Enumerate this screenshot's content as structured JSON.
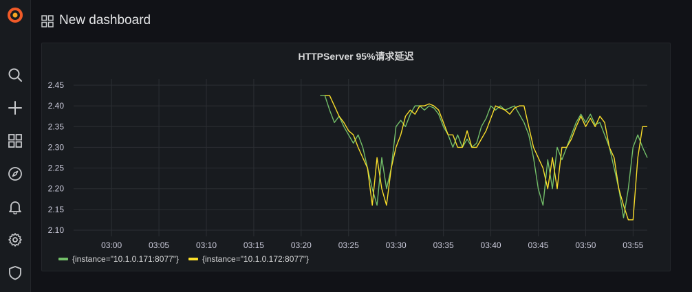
{
  "app": {
    "dashboard_title": "New dashboard",
    "sidebar": [
      {
        "icon": "grafana-logo-icon"
      },
      {
        "icon": "search-icon"
      },
      {
        "icon": "plus-icon"
      },
      {
        "icon": "dashboards-grid-icon"
      },
      {
        "icon": "compass-icon"
      },
      {
        "icon": "bell-icon"
      },
      {
        "icon": "gear-icon"
      },
      {
        "icon": "shield-icon"
      }
    ]
  },
  "colors": {
    "series_green": "#73bf69",
    "series_yellow": "#fade2a",
    "logo_orange": "#f05a28"
  },
  "panel": {
    "title": "HTTPServer 95%请求延迟"
  },
  "chart_data": {
    "type": "line",
    "title": "HTTPServer 95%请求延迟",
    "x_unit": "time (HH:MM)",
    "x_ticks": [
      "03:00",
      "03:05",
      "03:10",
      "03:15",
      "03:20",
      "03:25",
      "03:30",
      "03:35",
      "03:40",
      "03:45",
      "03:50",
      "03:55"
    ],
    "y_ticks": [
      "2.10",
      "2.15",
      "2.20",
      "2.25",
      "2.30",
      "2.35",
      "2.40",
      "2.45"
    ],
    "xlim": [
      "02:56",
      "03:56:30"
    ],
    "ylim": [
      2.1,
      2.45
    ],
    "grid": true,
    "legend_placement": "bottom-left",
    "series": [
      {
        "name": "{instance=\"10.1.0.171:8077\"}",
        "color": "#73bf69",
        "x": [
          "03:22",
          "03:22:30",
          "03:23",
          "03:23:30",
          "03:24",
          "03:24:30",
          "03:25",
          "03:25:30",
          "03:26",
          "03:26:30",
          "03:27",
          "03:27:30",
          "03:28",
          "03:28:30",
          "03:29",
          "03:29:30",
          "03:30",
          "03:30:30",
          "03:31",
          "03:31:30",
          "03:32",
          "03:32:30",
          "03:33",
          "03:33:30",
          "03:34",
          "03:34:30",
          "03:35",
          "03:35:30",
          "03:36",
          "03:36:30",
          "03:37",
          "03:37:30",
          "03:38",
          "03:38:30",
          "03:39",
          "03:39:30",
          "03:40",
          "03:40:30",
          "03:41",
          "03:41:30",
          "03:42",
          "03:42:30",
          "03:43",
          "03:43:30",
          "03:44",
          "03:44:30",
          "03:45",
          "03:45:30",
          "03:46",
          "03:46:30",
          "03:47",
          "03:47:30",
          "03:48",
          "03:48:30",
          "03:49",
          "03:49:30",
          "03:50",
          "03:50:30",
          "03:51",
          "03:51:30",
          "03:52",
          "03:52:30",
          "03:53",
          "03:53:30",
          "03:54",
          "03:54:30",
          "03:55",
          "03:55:30",
          "03:56",
          "03:56:30"
        ],
        "values": [
          2.425,
          2.425,
          2.39,
          2.36,
          2.375,
          2.35,
          2.33,
          2.31,
          2.33,
          2.3,
          2.25,
          2.2,
          2.16,
          2.275,
          2.2,
          2.25,
          2.35,
          2.365,
          2.35,
          2.38,
          2.4,
          2.4,
          2.39,
          2.4,
          2.395,
          2.38,
          2.35,
          2.33,
          2.3,
          2.33,
          2.3,
          2.32,
          2.3,
          2.31,
          2.35,
          2.37,
          2.4,
          2.39,
          2.4,
          2.39,
          2.395,
          2.4,
          2.38,
          2.36,
          2.33,
          2.275,
          2.2,
          2.16,
          2.27,
          2.2,
          2.3,
          2.27,
          2.3,
          2.33,
          2.36,
          2.38,
          2.36,
          2.38,
          2.355,
          2.36,
          2.33,
          2.3,
          2.25,
          2.2,
          2.13,
          2.2,
          2.3,
          2.33,
          2.3,
          2.275
        ]
      },
      {
        "name": "{instance=\"10.1.0.172:8077\"}",
        "color": "#fade2a",
        "x": [
          "03:22:30",
          "03:23",
          "03:23:30",
          "03:24",
          "03:24:30",
          "03:25",
          "03:25:30",
          "03:26",
          "03:26:30",
          "03:27",
          "03:27:30",
          "03:28",
          "03:28:30",
          "03:29",
          "03:29:30",
          "03:30",
          "03:30:30",
          "03:31",
          "03:31:30",
          "03:32",
          "03:32:30",
          "03:33",
          "03:33:30",
          "03:34",
          "03:34:30",
          "03:35",
          "03:35:30",
          "03:36",
          "03:36:30",
          "03:37",
          "03:37:30",
          "03:38",
          "03:38:30",
          "03:39",
          "03:39:30",
          "03:40",
          "03:40:30",
          "03:41",
          "03:41:30",
          "03:42",
          "03:42:30",
          "03:43",
          "03:43:30",
          "03:44",
          "03:44:30",
          "03:45",
          "03:45:30",
          "03:46",
          "03:46:30",
          "03:47",
          "03:47:30",
          "03:48",
          "03:48:30",
          "03:49",
          "03:49:30",
          "03:50",
          "03:50:30",
          "03:51",
          "03:51:30",
          "03:52",
          "03:52:30",
          "03:53",
          "03:53:30",
          "03:54",
          "03:54:30",
          "03:55",
          "03:55:30",
          "03:56",
          "03:56:30"
        ],
        "values": [
          2.425,
          2.425,
          2.4,
          2.375,
          2.36,
          2.34,
          2.33,
          2.3,
          2.275,
          2.25,
          2.16,
          2.275,
          2.2,
          2.16,
          2.25,
          2.3,
          2.33,
          2.375,
          2.39,
          2.38,
          2.4,
          2.4,
          2.405,
          2.4,
          2.39,
          2.36,
          2.33,
          2.33,
          2.3,
          2.3,
          2.34,
          2.3,
          2.3,
          2.32,
          2.34,
          2.37,
          2.4,
          2.395,
          2.39,
          2.38,
          2.395,
          2.4,
          2.4,
          2.35,
          2.3,
          2.275,
          2.25,
          2.2,
          2.275,
          2.2,
          2.3,
          2.3,
          2.32,
          2.35,
          2.375,
          2.35,
          2.37,
          2.35,
          2.375,
          2.36,
          2.3,
          2.275,
          2.2,
          2.16,
          2.125,
          2.125,
          2.275,
          2.35,
          2.35
        ]
      }
    ]
  }
}
